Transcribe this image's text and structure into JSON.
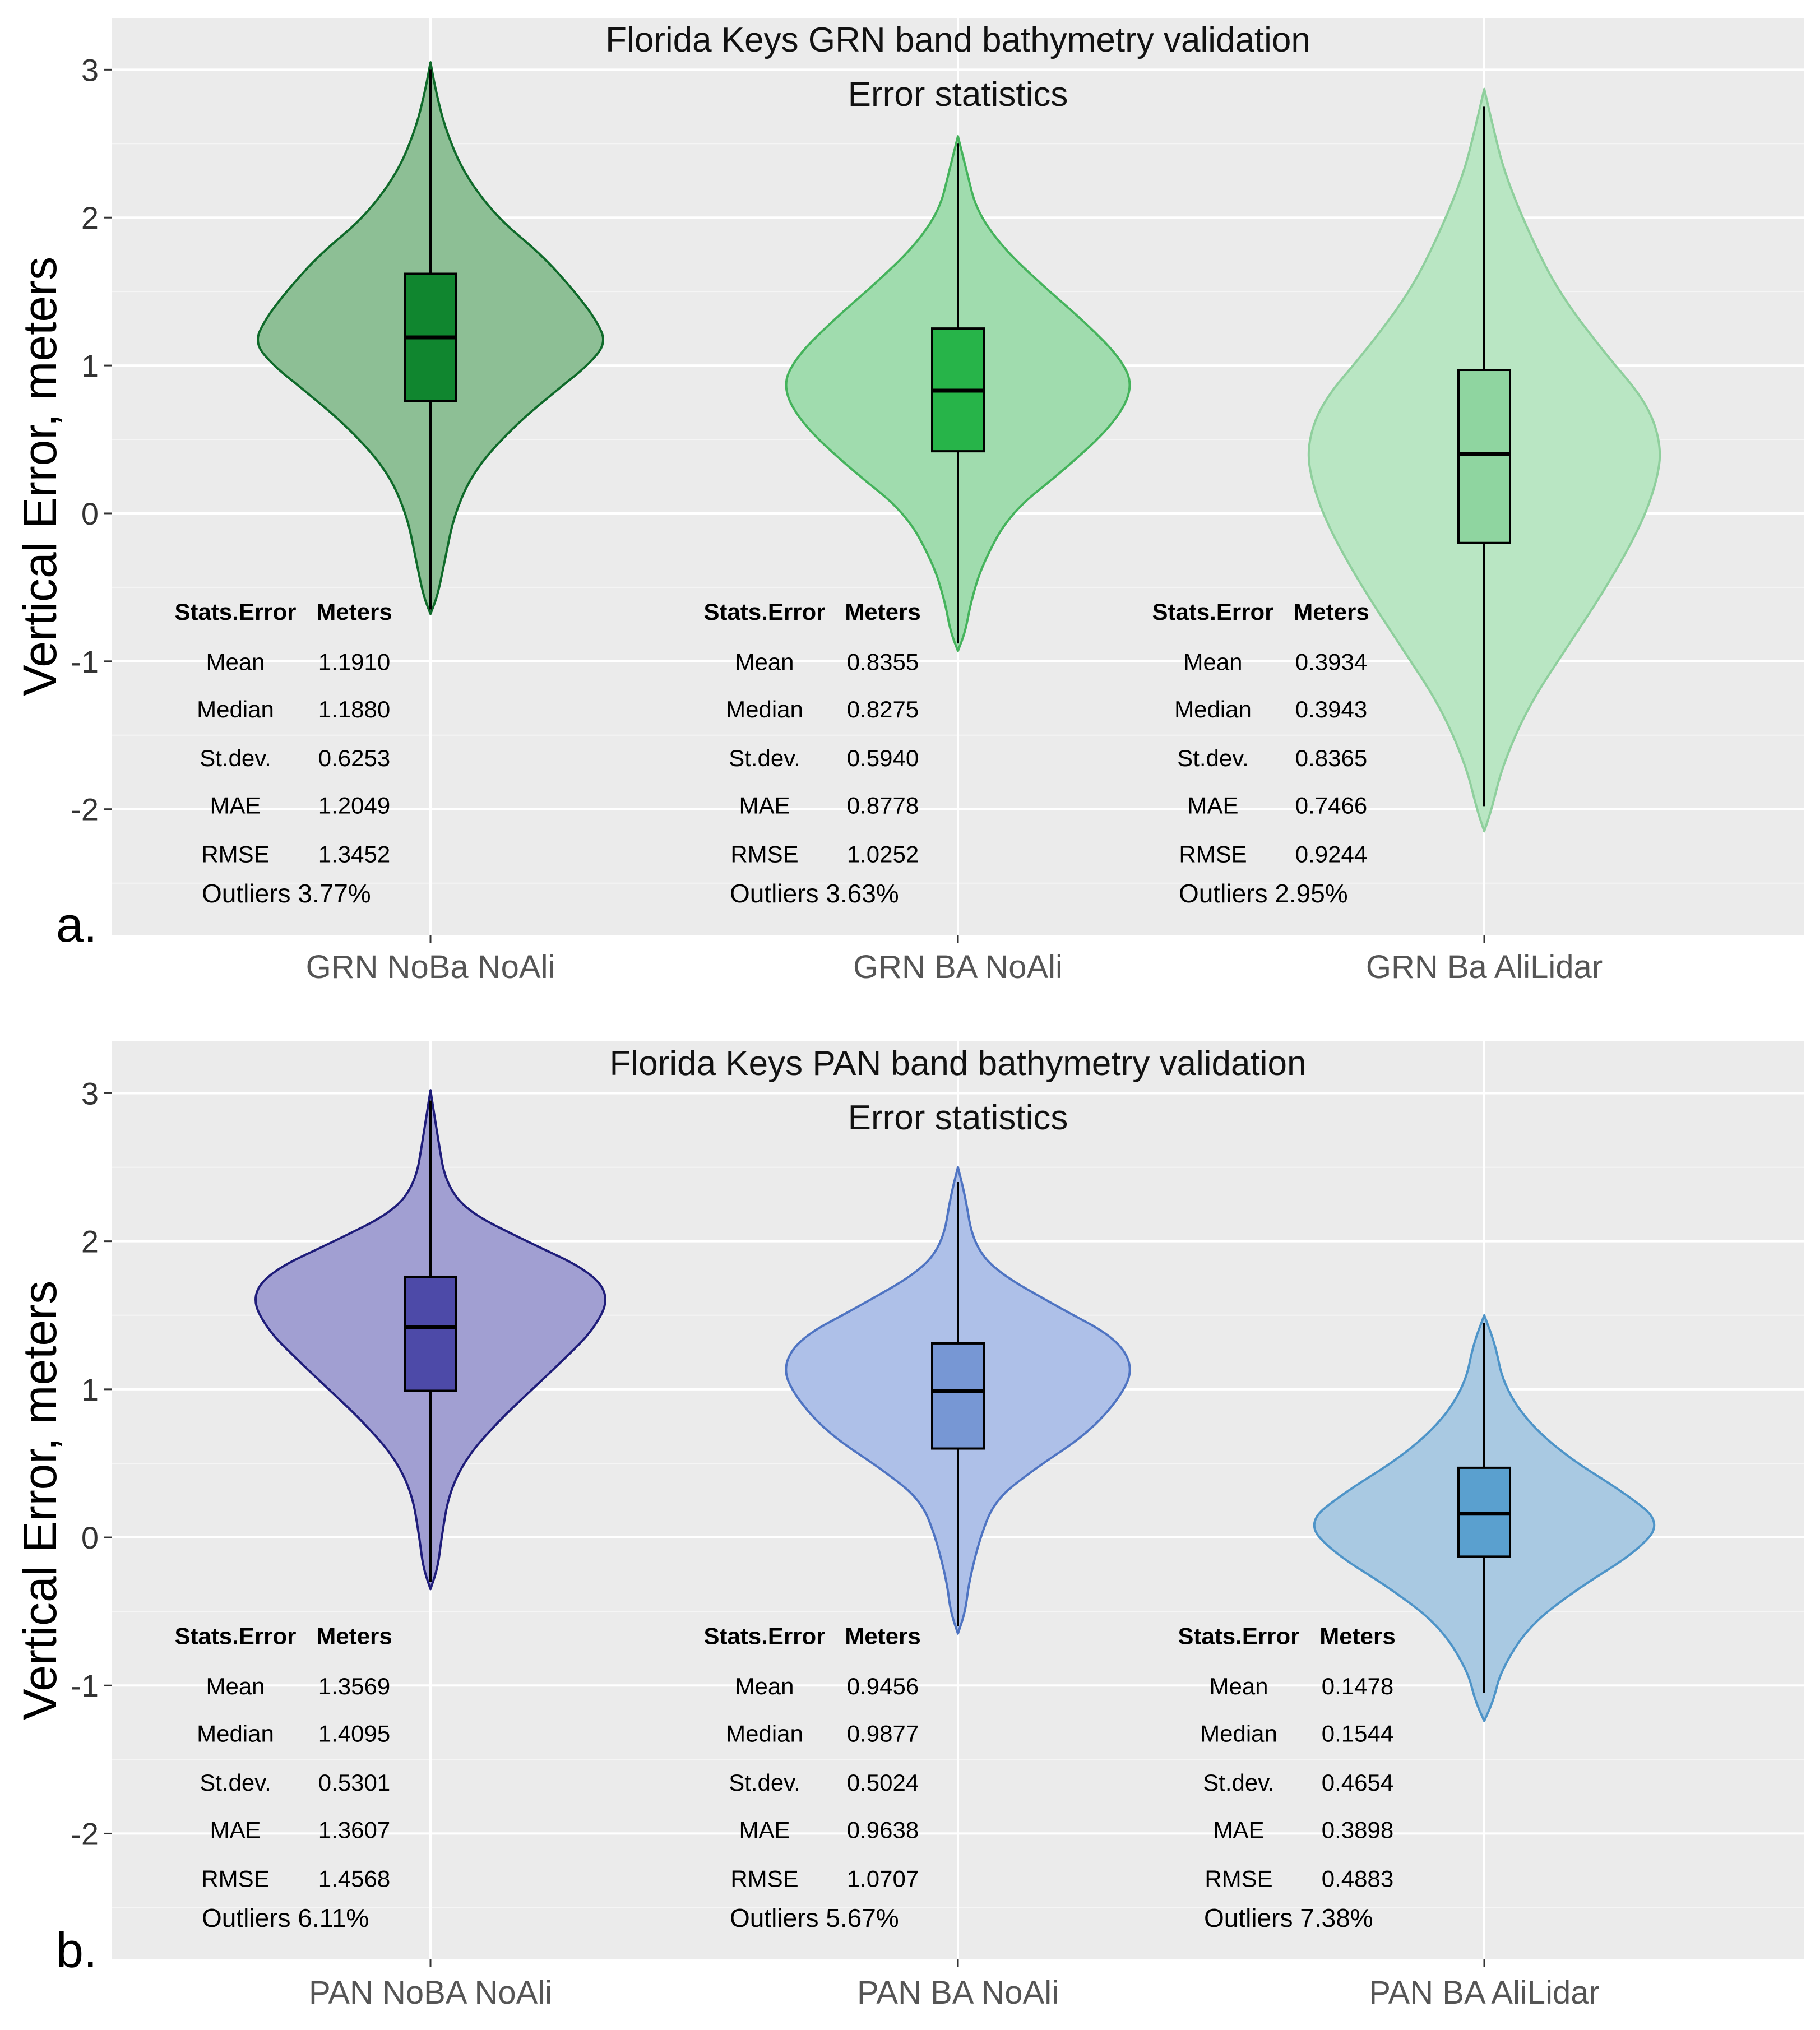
{
  "chart_data": [
    {
      "type": "violin",
      "panel_label": "a.",
      "title_lines": [
        "Florida Keys GRN band bathymetry validation",
        "Error statistics"
      ],
      "ylabel": "Vertical Error, meters",
      "ylim": [
        -2.85,
        3.35
      ],
      "yticks": [
        3,
        2,
        1,
        0,
        -1,
        -2
      ],
      "ytick_labels": [
        "3",
        "2",
        "1",
        "0",
        "-1",
        "-2"
      ],
      "categories": [
        "GRN NoBa NoAli",
        "GRN BA NoAli",
        "GRN Ba AliLidar"
      ],
      "colors": [
        {
          "fill": "#8dbf95",
          "stroke": "#0f6a2a",
          "box": "#10862f"
        },
        {
          "fill": "#a0dcae",
          "stroke": "#45b35c",
          "box": "#27b449"
        },
        {
          "fill": "#b9e6c3",
          "stroke": "#8fcf9d",
          "box": "#8fd5a0"
        }
      ],
      "violins": [
        {
          "profile": [
            [
              -0.68,
              0
            ],
            [
              -0.55,
              0.04
            ],
            [
              -0.3,
              0.08
            ],
            [
              0.0,
              0.13
            ],
            [
              0.3,
              0.24
            ],
            [
              0.6,
              0.46
            ],
            [
              0.85,
              0.7
            ],
            [
              1.0,
              0.85
            ],
            [
              1.15,
              0.95
            ],
            [
              1.3,
              0.9
            ],
            [
              1.5,
              0.78
            ],
            [
              1.75,
              0.6
            ],
            [
              2.0,
              0.36
            ],
            [
              2.3,
              0.18
            ],
            [
              2.6,
              0.08
            ],
            [
              2.85,
              0.03
            ],
            [
              3.05,
              0
            ]
          ],
          "box": {
            "q1": 0.76,
            "median": 1.19,
            "q3": 1.62
          },
          "whisker": [
            -0.65,
            3.0
          ]
        },
        {
          "profile": [
            [
              -0.93,
              0
            ],
            [
              -0.8,
              0.04
            ],
            [
              -0.6,
              0.07
            ],
            [
              -0.35,
              0.13
            ],
            [
              0.0,
              0.28
            ],
            [
              0.3,
              0.58
            ],
            [
              0.6,
              0.84
            ],
            [
              0.85,
              0.95
            ],
            [
              1.05,
              0.88
            ],
            [
              1.3,
              0.68
            ],
            [
              1.55,
              0.45
            ],
            [
              1.8,
              0.24
            ],
            [
              2.05,
              0.1
            ],
            [
              2.3,
              0.05
            ],
            [
              2.55,
              0
            ]
          ],
          "box": {
            "q1": 0.42,
            "median": 0.83,
            "q3": 1.25
          },
          "whisker": [
            -0.88,
            2.5
          ]
        },
        {
          "profile": [
            [
              -2.15,
              0
            ],
            [
              -2.0,
              0.04
            ],
            [
              -1.7,
              0.1
            ],
            [
              -1.3,
              0.24
            ],
            [
              -0.9,
              0.45
            ],
            [
              -0.5,
              0.66
            ],
            [
              -0.1,
              0.84
            ],
            [
              0.2,
              0.93
            ],
            [
              0.45,
              0.96
            ],
            [
              0.75,
              0.88
            ],
            [
              1.1,
              0.64
            ],
            [
              1.5,
              0.4
            ],
            [
              1.9,
              0.24
            ],
            [
              2.3,
              0.11
            ],
            [
              2.6,
              0.05
            ],
            [
              2.87,
              0
            ]
          ],
          "box": {
            "q1": -0.2,
            "median": 0.4,
            "q3": 0.97
          },
          "whisker": [
            -1.98,
            2.75
          ]
        }
      ],
      "stats_tables": [
        {
          "header": [
            "Stats.Error",
            "Meters"
          ],
          "rows": [
            [
              "Mean",
              "1.1910"
            ],
            [
              "Median",
              "1.1880"
            ],
            [
              "St.dev.",
              "0.6253"
            ],
            [
              "MAE",
              "1.2049"
            ],
            [
              "RMSE",
              "1.3452"
            ]
          ],
          "outliers": "Outliers 3.77%"
        },
        {
          "header": [
            "Stats.Error",
            "Meters"
          ],
          "rows": [
            [
              "Mean",
              "0.8355"
            ],
            [
              "Median",
              "0.8275"
            ],
            [
              "St.dev.",
              "0.5940"
            ],
            [
              "MAE",
              "0.8778"
            ],
            [
              "RMSE",
              "1.0252"
            ]
          ],
          "outliers": "Outliers 3.63%"
        },
        {
          "header": [
            "Stats.Error",
            "Meters"
          ],
          "rows": [
            [
              "Mean",
              "0.3934"
            ],
            [
              "Median",
              "0.3943"
            ],
            [
              "St.dev.",
              "0.8365"
            ],
            [
              "MAE",
              "0.7466"
            ],
            [
              "RMSE",
              "0.9244"
            ]
          ],
          "outliers": "Outliers 2.95%"
        }
      ]
    },
    {
      "type": "violin",
      "panel_label": "b.",
      "title_lines": [
        "Florida Keys PAN band bathymetry validation",
        "Error statistics"
      ],
      "ylabel": "Vertical Error, meters",
      "ylim": [
        -2.85,
        3.35
      ],
      "yticks": [
        3,
        2,
        1,
        0,
        -1,
        -2
      ],
      "ytick_labels": [
        "3",
        "2",
        "1",
        "0",
        "-1",
        "-2"
      ],
      "categories": [
        "PAN NoBA NoAli",
        "PAN BA NoAli",
        "PAN BA AliLidar"
      ],
      "colors": [
        {
          "fill": "#a19fd2",
          "stroke": "#1f1d7a",
          "box": "#4d4aa8"
        },
        {
          "fill": "#aec0e8",
          "stroke": "#4f74c2",
          "box": "#7797d4"
        },
        {
          "fill": "#a9c9e2",
          "stroke": "#4e94c8",
          "box": "#5aa0cf"
        }
      ],
      "violins": [
        {
          "profile": [
            [
              -0.35,
              0
            ],
            [
              -0.2,
              0.04
            ],
            [
              0.0,
              0.06
            ],
            [
              0.3,
              0.1
            ],
            [
              0.55,
              0.2
            ],
            [
              0.8,
              0.38
            ],
            [
              1.0,
              0.55
            ],
            [
              1.2,
              0.72
            ],
            [
              1.4,
              0.88
            ],
            [
              1.62,
              0.97
            ],
            [
              1.8,
              0.86
            ],
            [
              2.0,
              0.52
            ],
            [
              2.2,
              0.2
            ],
            [
              2.4,
              0.08
            ],
            [
              2.7,
              0.04
            ],
            [
              3.02,
              0
            ]
          ],
          "box": {
            "q1": 0.99,
            "median": 1.42,
            "q3": 1.76
          },
          "whisker": [
            -0.3,
            2.95
          ]
        },
        {
          "profile": [
            [
              -0.65,
              0
            ],
            [
              -0.5,
              0.04
            ],
            [
              -0.3,
              0.06
            ],
            [
              0.0,
              0.12
            ],
            [
              0.25,
              0.2
            ],
            [
              0.45,
              0.4
            ],
            [
              0.7,
              0.7
            ],
            [
              0.95,
              0.88
            ],
            [
              1.15,
              0.95
            ],
            [
              1.35,
              0.85
            ],
            [
              1.55,
              0.55
            ],
            [
              1.8,
              0.2
            ],
            [
              2.0,
              0.08
            ],
            [
              2.3,
              0.04
            ],
            [
              2.5,
              0
            ]
          ],
          "box": {
            "q1": 0.6,
            "median": 0.99,
            "q3": 1.31
          },
          "whisker": [
            -0.6,
            2.4
          ]
        },
        {
          "profile": [
            [
              -1.24,
              0
            ],
            [
              -1.1,
              0.05
            ],
            [
              -0.9,
              0.09
            ],
            [
              -0.6,
              0.24
            ],
            [
              -0.35,
              0.5
            ],
            [
              -0.1,
              0.82
            ],
            [
              0.1,
              0.96
            ],
            [
              0.3,
              0.76
            ],
            [
              0.55,
              0.44
            ],
            [
              0.8,
              0.22
            ],
            [
              1.05,
              0.1
            ],
            [
              1.3,
              0.06
            ],
            [
              1.5,
              0
            ]
          ],
          "box": {
            "q1": -0.13,
            "median": 0.16,
            "q3": 0.47
          },
          "whisker": [
            -1.05,
            1.45
          ]
        }
      ],
      "stats_tables": [
        {
          "header": [
            "Stats.Error",
            "Meters"
          ],
          "rows": [
            [
              "Mean",
              "1.3569"
            ],
            [
              "Median",
              "1.4095"
            ],
            [
              "St.dev.",
              "0.5301"
            ],
            [
              "MAE",
              "1.3607"
            ],
            [
              "RMSE",
              "1.4568"
            ]
          ],
          "outliers": "Outliers 6.11%"
        },
        {
          "header": [
            "Stats.Error",
            "Meters"
          ],
          "rows": [
            [
              "Mean",
              "0.9456"
            ],
            [
              "Median",
              "0.9877"
            ],
            [
              "St.dev.",
              "0.5024"
            ],
            [
              "MAE",
              "0.9638"
            ],
            [
              "RMSE",
              "1.0707"
            ]
          ],
          "outliers": "Outliers 5.67%"
        },
        {
          "header": [
            "Stats.Error",
            "Meters"
          ],
          "rows": [
            [
              "Mean",
              "0.1478"
            ],
            [
              "Median",
              "0.1544"
            ],
            [
              "St.dev.",
              "0.4654"
            ],
            [
              "MAE",
              "0.3898"
            ],
            [
              "RMSE",
              "0.4883"
            ]
          ],
          "outliers": "Outliers 7.38%"
        }
      ]
    }
  ]
}
